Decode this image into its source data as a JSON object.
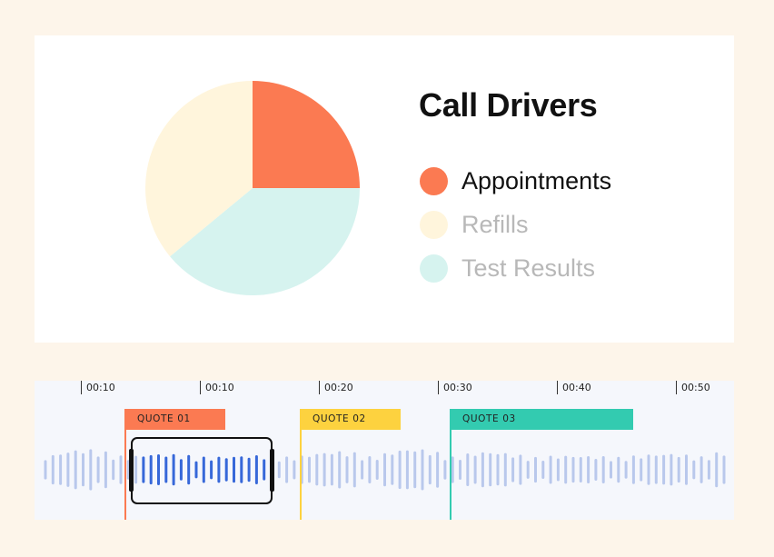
{
  "chart_data": {
    "type": "pie",
    "title": "Call Drivers",
    "slices": [
      {
        "label": "Appointments",
        "value": 25,
        "color": "#fb7a52"
      },
      {
        "label": "Test Results",
        "value": 39,
        "color": "#d6f3ef"
      },
      {
        "label": "Refills",
        "value": 36,
        "color": "#fff5dc"
      }
    ],
    "legend": [
      {
        "label": "Appointments",
        "color": "#fb7a52",
        "active": true
      },
      {
        "label": "Refills",
        "color": "#fff5dc",
        "active": false
      },
      {
        "label": "Test Results",
        "color": "#d6f3ef",
        "active": false
      }
    ],
    "start_angle_deg": 0,
    "direction": "clockwise",
    "legend_placement": "right"
  },
  "timeline": {
    "ticks": [
      "00:10",
      "00:10",
      "00:20",
      "00:30",
      "00:40",
      "00:50"
    ],
    "quotes": [
      {
        "label": "QUOTE 01",
        "color": "#fb7a52"
      },
      {
        "label": "QUOTE 02",
        "color": "#fdd23f"
      },
      {
        "label": "QUOTE 03",
        "color": "#33cbb0"
      }
    ],
    "colors": {
      "wave": "#b9c8ec",
      "wave_selected": "#3768d9",
      "selection": "#111111",
      "panel": "#f5f7fc"
    }
  }
}
